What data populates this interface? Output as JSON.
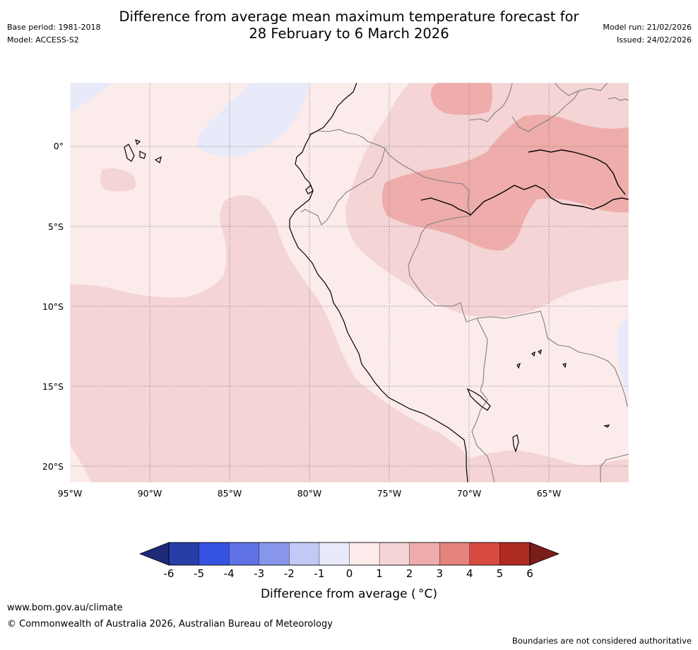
{
  "header": {
    "title_line1": "Difference from average mean maximum temperature forecast for",
    "title_line2": "28 February to 6 March 2026",
    "base_period": "Base period: 1981-2018",
    "model": "Model: ACCESS-S2",
    "model_run": "Model run: 21/02/2026",
    "issued": "Issued: 24/02/2026"
  },
  "map": {
    "latitude_labels": [
      "0°",
      "5°S",
      "10°S",
      "15°S",
      "20°S"
    ],
    "longitude_labels": [
      "95°W",
      "90°W",
      "85°W",
      "80°W",
      "75°W",
      "70°W",
      "65°W"
    ],
    "colors": {
      "band_m2_m1": "#e8eafa",
      "band_0_1": "#fbebea",
      "band_1_2": "#f4d4d4",
      "band_2_3": "#eeacaa",
      "coast": "#000000",
      "border": "#808080",
      "grid": "#808080"
    }
  },
  "colorbar": {
    "title": "Difference from average ( °C)",
    "tick_labels": [
      "-6",
      "-5",
      "-4",
      "-3",
      "-2",
      "-1",
      "0",
      "1",
      "2",
      "3",
      "4",
      "5",
      "6"
    ],
    "low_extend_color": "#1e2a78",
    "high_extend_color": "#7a1e1a",
    "swatches": [
      "#273da8",
      "#3552e0",
      "#5e72e6",
      "#8796ea",
      "#c2c9f5",
      "#e8eafa",
      "#fbebea",
      "#f4d4d4",
      "#eeacaa",
      "#e6837d",
      "#d94a40",
      "#ae2b22"
    ]
  },
  "footer": {
    "url": "www.bom.gov.au/climate",
    "copyright": "© Commonwealth of Australia 2026, Australian Bureau of Meteorology",
    "note": "Boundaries are not considered authoritative"
  }
}
